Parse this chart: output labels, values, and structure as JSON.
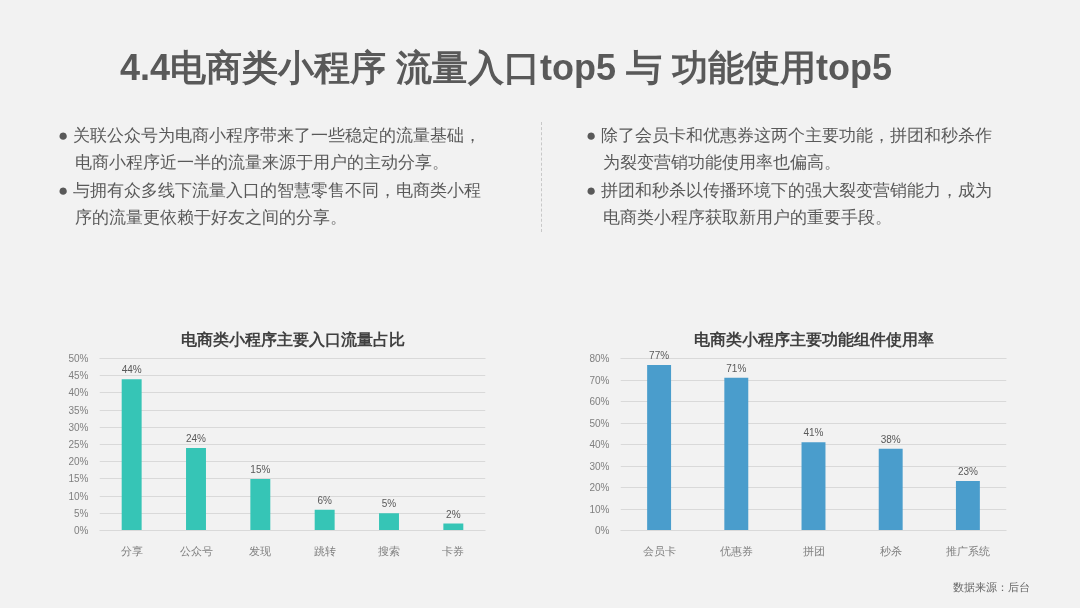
{
  "chart_data": [
    {
      "type": "other",
      "title": "4.4电商类小程序 流量入口top5 与 功能使用top5",
      "annotations": [
        "数据来源：后台"
      ]
    },
    {
      "type": "bar",
      "title": "电商类小程序主要入口流量占比",
      "categories": [
        "分享",
        "公众号",
        "发现",
        "跳转",
        "搜索",
        "卡券"
      ],
      "values": [
        44,
        24,
        15,
        6,
        5,
        2
      ],
      "value_labels": [
        "44%",
        "24%",
        "15%",
        "6%",
        "5%",
        "2%"
      ],
      "color": "#36c5b6",
      "ylim": [
        0,
        50
      ],
      "yticks": [
        {
          "value": 0,
          "label": "0%"
        },
        {
          "value": 5,
          "label": "5%"
        },
        {
          "value": 10,
          "label": "10%"
        },
        {
          "value": 15,
          "label": "15%"
        },
        {
          "value": 20,
          "label": "20%"
        },
        {
          "value": 25,
          "label": "25%"
        },
        {
          "value": 30,
          "label": "30%"
        },
        {
          "value": 35,
          "label": "35%"
        },
        {
          "value": 40,
          "label": "40%"
        },
        {
          "value": 45,
          "label": "45%"
        },
        {
          "value": 50,
          "label": "50%"
        }
      ],
      "grid": "y",
      "annotations": [
        "● 关联公众号为电商小程序带来了一些稳定的流量基础，电商小程序近一半的流量来源于用户的主动分享。",
        "● 与拥有众多线下流量入口的智慧零售不同，电商类小程序的流量更依赖于好友之间的分享。"
      ]
    },
    {
      "type": "bar",
      "title": "电商类小程序主要功能组件使用率",
      "categories": [
        "会员卡",
        "优惠券",
        "拼团",
        "秒杀",
        "推广系统"
      ],
      "values": [
        77,
        71,
        41,
        38,
        23
      ],
      "value_labels": [
        "77%",
        "71%",
        "41%",
        "38%",
        "23%"
      ],
      "color": "#4a9dcc",
      "ylim": [
        0,
        80
      ],
      "yticks": [
        {
          "value": 0,
          "label": "0%"
        },
        {
          "value": 10,
          "label": "10%"
        },
        {
          "value": 20,
          "label": "20%"
        },
        {
          "value": 30,
          "label": "30%"
        },
        {
          "value": 40,
          "label": "40%"
        },
        {
          "value": 50,
          "label": "50%"
        },
        {
          "value": 60,
          "label": "60%"
        },
        {
          "value": 70,
          "label": "70%"
        },
        {
          "value": 80,
          "label": "80%"
        }
      ],
      "grid": "y",
      "annotations": [
        "● 除了会员卡和优惠券这两个主要功能，拼团和秒杀作为裂变营销功能使用率也偏高。",
        "● 拼团和秒杀以传播环境下的强大裂变营销能力，成为电商类小程序获取新用户的重要手段。"
      ]
    }
  ]
}
